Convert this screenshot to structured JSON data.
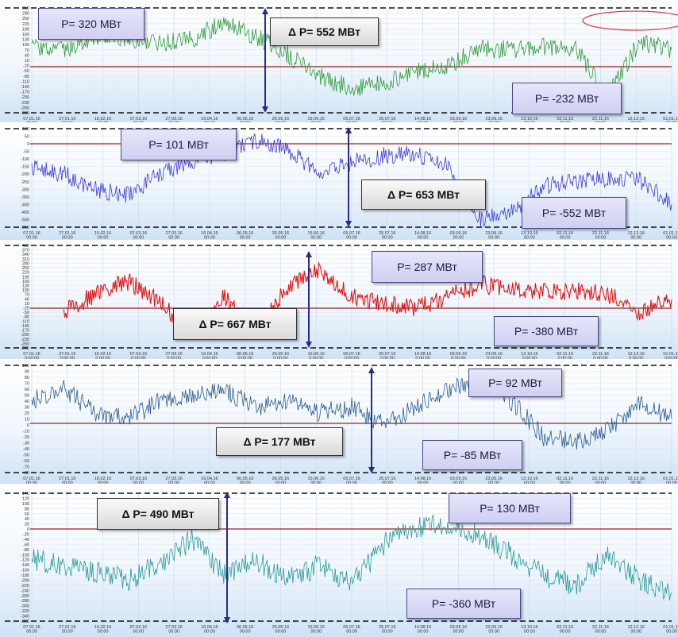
{
  "chart_data": [
    {
      "type": "line",
      "color": "#2e9a3a",
      "ylim": [
        -290,
        310
      ],
      "y_ticks": [
        "310",
        "280",
        "250",
        "220",
        "190",
        "160",
        "130",
        "100",
        "70",
        "40",
        "10",
        "-20",
        "-50",
        "-80",
        "-110",
        "-140",
        "-170",
        "-200",
        "-230",
        "-260",
        "-290"
      ],
      "x_ticks": [
        "07.01.16 00:00",
        "27.01.16 00:00",
        "16.02.16 00:00",
        "07.03.16 00:00",
        "27.03.16 00:00",
        "16.04.16 00:00",
        "06.05.16 00:00",
        "26.05.16 00:00",
        "15.06.16 00:00",
        "05.07.16 00:00",
        "25.07.16 00:00",
        "14.08.16 00:00",
        "03.09.16 00:00",
        "23.09.16 00:00",
        "13.10.16 00:00",
        "02.11.16 00:00",
        "22.11.16 00:00",
        "12.12.16 00:00",
        "01.01.17 00:00"
      ],
      "series": [
        {
          "x": [
            0,
            5,
            10,
            15,
            20,
            25,
            30,
            35,
            40,
            45,
            50,
            55,
            60,
            65,
            70,
            75,
            80,
            85,
            90,
            95,
            100
          ],
          "y": [
            80,
            60,
            150,
            140,
            110,
            130,
            230,
            150,
            40,
            -80,
            -150,
            -120,
            -50,
            -20,
            80,
            70,
            90,
            80,
            -200,
            120,
            70
          ]
        }
      ],
      "p_max": "P= 320 МВт",
      "p_min": "P= -232 МВт",
      "delta": "Δ P= 552 МВт"
    },
    {
      "type": "line",
      "color": "#3a3ad8",
      "ylim": [
        -550,
        100
      ],
      "y_ticks": [
        "100",
        "50",
        "0",
        "-50",
        "-100",
        "-150",
        "-200",
        "-250",
        "-300",
        "-350",
        "-400",
        "-450",
        "-500",
        "-550"
      ],
      "x_ticks": [
        "07.01.16 00:00",
        "27.01.16 00:00",
        "16.02.16 00:00",
        "07.03.16 00:00",
        "27.03.16 00:00",
        "16.04.16 00:00",
        "06.05.16 00:00",
        "26.05.16 00:00",
        "15.06.16 00:00",
        "05.07.16 00:00",
        "25.07.16 00:00",
        "14.08.16 00:00",
        "03.09.16 00:00",
        "23.09.16 00:00",
        "13.10.16 00:00",
        "02.11.16 00:00",
        "22.11.16 00:00",
        "12.12.16 00:00",
        "01.01.17 00:00"
      ],
      "series": [
        {
          "x": [
            0,
            5,
            10,
            15,
            20,
            25,
            30,
            35,
            40,
            45,
            50,
            55,
            60,
            65,
            70,
            75,
            80,
            85,
            90,
            95,
            100
          ],
          "y": [
            -150,
            -200,
            -300,
            -340,
            -200,
            -120,
            -60,
            20,
            -40,
            -200,
            -120,
            -80,
            -60,
            -150,
            -500,
            -450,
            -280,
            -250,
            -230,
            -240,
            -400
          ]
        }
      ],
      "p_max": "P= 101 МВт",
      "p_min": "P= -552 МВт",
      "delta": "Δ P= 653 МВт"
    },
    {
      "type": "line",
      "color": "#e01818",
      "ylim": [
        -280,
        400
      ],
      "y_ticks": [
        "400",
        "370",
        "340",
        "310",
        "280",
        "250",
        "220",
        "190",
        "160",
        "130",
        "100",
        "70",
        "40",
        "10",
        "-20",
        "-50",
        "-80",
        "-110",
        "-140",
        "-170",
        "-200",
        "-230",
        "-260",
        "-280"
      ],
      "x_ticks": [
        "07.01.16 0:00:00",
        "27.01.16 0:00:00",
        "16.02.16 0:00:00",
        "07.03.16 0:00:00",
        "27.03.16 0:00:00",
        "16.04.16 0:00:00",
        "06.05.16 0:00:00",
        "26.05.16 0:00:00",
        "15.06.16 0:00:00",
        "05.07.16 0:00:00",
        "25.07.16 0:00:00",
        "14.08.16 0:00:00",
        "03.09.16 0:00:00",
        "23.09.16 0:00:00",
        "13.10.16 0:00:00",
        "02.11.16 0:00:00",
        "22.11.16 0:00:00",
        "12.12.16 0:00:00",
        "01.01.17 0:00:00"
      ],
      "series": [
        {
          "x": [
            5,
            10,
            15,
            20,
            25,
            30,
            35,
            40,
            45,
            50,
            55,
            60,
            65,
            70,
            75,
            80,
            85,
            90,
            95,
            100
          ],
          "y": [
            -40,
            80,
            160,
            30,
            -200,
            60,
            -150,
            120,
            250,
            60,
            20,
            -20,
            60,
            140,
            120,
            90,
            100,
            80,
            -40,
            40
          ]
        }
      ],
      "p_max": "P= 287 МВт",
      "p_min": "P= -380 МВт",
      "delta": "Δ P= 667 МВт"
    },
    {
      "type": "line",
      "color": "#2a5d8f",
      "ylim": [
        -80,
        100
      ],
      "y_ticks": [
        "100",
        "90",
        "80",
        "70",
        "60",
        "50",
        "40",
        "30",
        "20",
        "10",
        "0",
        "-10",
        "-20",
        "-30",
        "-40",
        "-50",
        "-60",
        "-70",
        "-80"
      ],
      "x_ticks": [
        "07.01.16 00:00",
        "27.01.16 00:00",
        "16.02.16 00:00",
        "07.03.16 00:00",
        "27.03.16 00:00",
        "16.04.16 00:00",
        "06.05.16 00:00",
        "26.05.16 00:00",
        "15.06.16 00:00",
        "05.07.16 00:00",
        "25.07.16 00:00",
        "14.08.16 00:00",
        "03.09.16 00:00",
        "23.09.16 00:00",
        "13.10.16 00:00",
        "02.11.16 00:00",
        "22.11.16 00:00",
        "12.12.16 00:00",
        "01.01.17 00:00"
      ],
      "series": [
        {
          "x": [
            0,
            5,
            10,
            15,
            20,
            25,
            30,
            35,
            40,
            45,
            50,
            55,
            60,
            65,
            70,
            75,
            80,
            85,
            90,
            95,
            100
          ],
          "y": [
            40,
            60,
            20,
            10,
            40,
            50,
            60,
            30,
            40,
            20,
            30,
            0,
            30,
            60,
            80,
            40,
            -20,
            -30,
            -10,
            40,
            10
          ]
        }
      ],
      "p_max": "P= 92 МВт",
      "p_min": "P= -85 МВт",
      "delta": "Δ P= 177 МВт"
    },
    {
      "type": "line",
      "color": "#2a9a98",
      "ylim": [
        -360,
        140
      ],
      "y_ticks": [
        "140",
        "120",
        "100",
        "80",
        "60",
        "40",
        "20",
        "0",
        "-20",
        "-40",
        "-60",
        "-80",
        "-100",
        "-120",
        "-140",
        "-160",
        "-180",
        "-200",
        "-220",
        "-240",
        "-260",
        "-280",
        "-300",
        "-320",
        "-340",
        "-360"
      ],
      "x_ticks": [
        "07.01.16 00:00",
        "27.01.16 00:00",
        "16.02.16 00:00",
        "07.03.16 00:00",
        "27.03.16 00:00",
        "16.04.16 00:00",
        "06.05.16 00:00",
        "26.05.16 00:00",
        "15.06.16 00:00",
        "05.07.16 00:00",
        "25.07.16 00:00",
        "14.08.16 00:00",
        "03.09.16 00:00",
        "23.09.16 00:00",
        "13.10.16 00:00",
        "02.11.16 00:00",
        "22.11.16 00:00",
        "12.12.16 00:00",
        "01.01.17 00:00"
      ],
      "series": [
        {
          "x": [
            0,
            5,
            10,
            15,
            20,
            25,
            30,
            35,
            40,
            45,
            50,
            55,
            60,
            65,
            70,
            75,
            80,
            85,
            90,
            95,
            100
          ],
          "y": [
            -120,
            -140,
            -170,
            -200,
            -140,
            -40,
            -180,
            -120,
            -200,
            -140,
            -220,
            -60,
            0,
            20,
            -20,
            -100,
            -180,
            -220,
            -100,
            -200,
            -250
          ]
        }
      ],
      "p_max": "P= 130 МВт",
      "p_min": "P= -360 МВт",
      "delta": "Δ P= 490 МВт"
    }
  ]
}
